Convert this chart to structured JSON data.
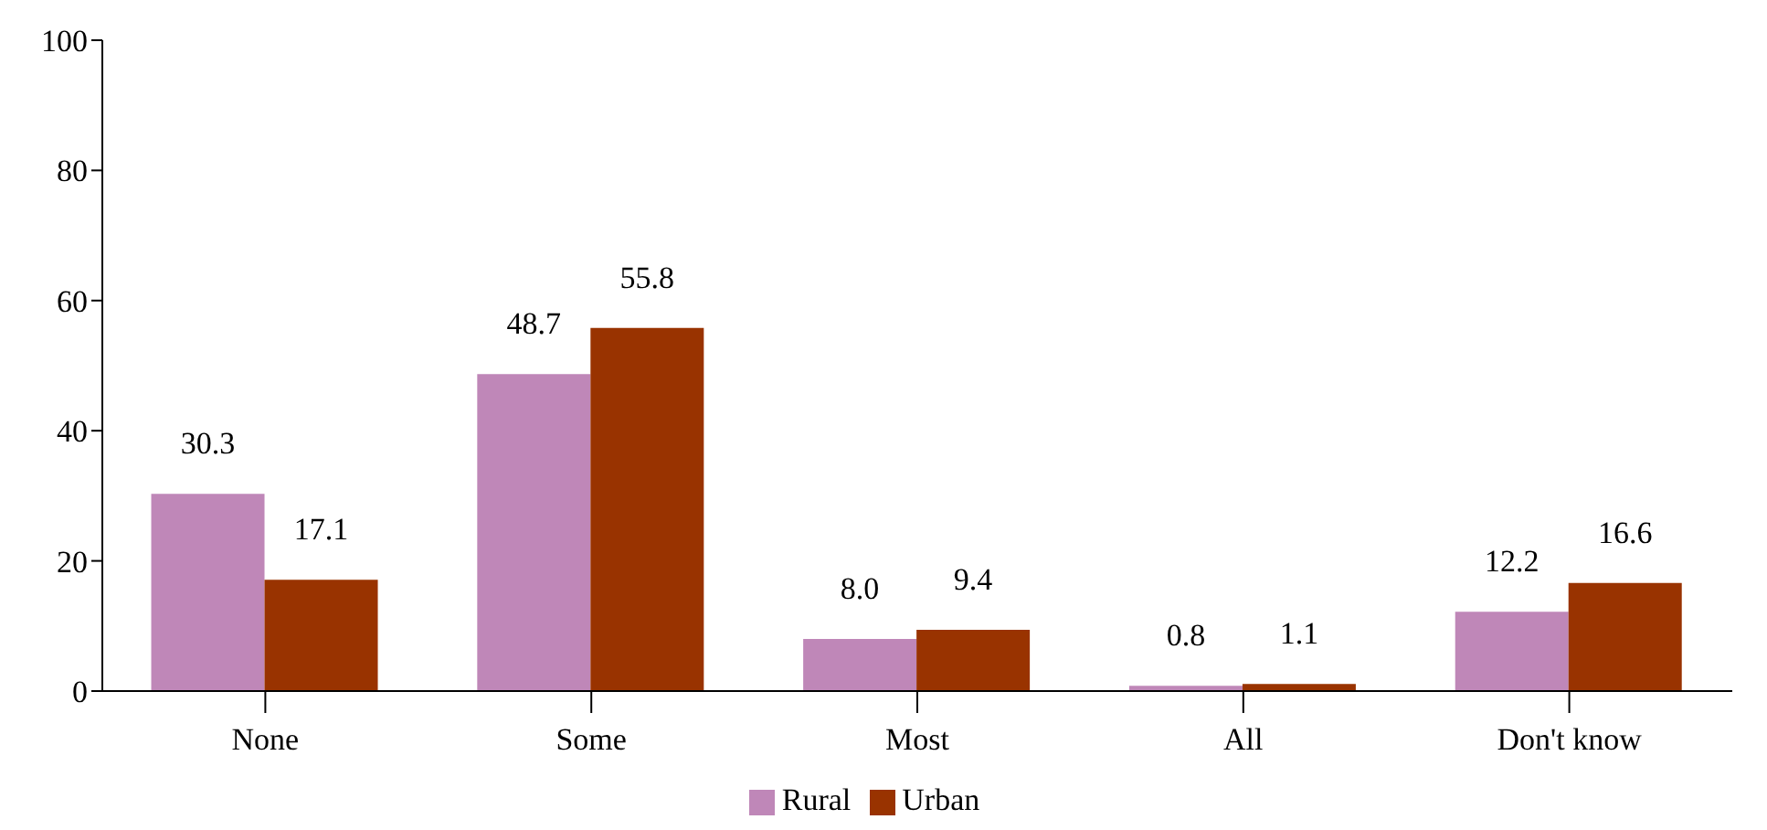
{
  "chart_data": {
    "type": "bar",
    "categories": [
      "None",
      "Some",
      "Most",
      "All",
      "Don't know"
    ],
    "series": [
      {
        "name": "Rural",
        "color": "#bf87b8",
        "values": [
          30.3,
          48.7,
          8.0,
          0.8,
          12.2
        ],
        "value_labels": [
          "30.3",
          "48.7",
          "8.0",
          "0.8",
          "12.2"
        ]
      },
      {
        "name": "Urban",
        "color": "#993300",
        "values": [
          17.1,
          55.8,
          9.4,
          1.1,
          16.6
        ],
        "value_labels": [
          "17.1",
          "55.8",
          "9.4",
          "1.1",
          "16.6"
        ]
      }
    ],
    "ylim": [
      0,
      100
    ],
    "yticks": [
      0,
      20,
      40,
      60,
      80,
      100
    ],
    "legend": "bottom",
    "grid": false
  }
}
